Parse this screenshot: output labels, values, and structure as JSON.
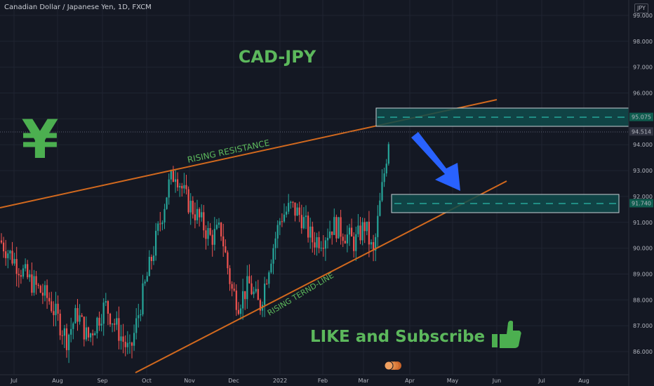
{
  "header": {
    "symbol_title": "Canadian Dollar / Japanese Yen, 1D, FXCM",
    "currency": "JPY"
  },
  "annotations": {
    "title": "CAD-JPY",
    "yen_symbol": "¥",
    "resistance_label": "RISING RESISTANCE",
    "trendline_label": "RISING TERND-LINE",
    "cta": "LIKE and Subscribe",
    "thumbs_up": "👍"
  },
  "colors": {
    "background": "#141823",
    "grid": "#1f2431",
    "up_candle": "#26a69a",
    "down_candle": "#ef5350",
    "trendline": "#d2691e",
    "zone_fill": "#0f4b4b",
    "zone_border": "#c8d1d6",
    "zone_dash": "#26a69a",
    "annotation_green": "#5cb85c",
    "arrow": "#2962ff",
    "price_label_bg": "#0f5c4e"
  },
  "chart_data": {
    "type": "candlestick",
    "title": "Canadian Dollar / Japanese Yen, 1D, FXCM",
    "y_axis": {
      "ticks": [
        "99.000",
        "98.000",
        "97.000",
        "96.000",
        "95.000",
        "94.000",
        "93.000",
        "92.000",
        "91.000",
        "90.000",
        "89.000",
        "88.000",
        "87.000",
        "86.000"
      ],
      "range": [
        85.0,
        99.6
      ]
    },
    "x_axis": {
      "ticks": [
        "Jul",
        "Aug",
        "Sep",
        "Oct",
        "Nov",
        "Dec",
        "2022",
        "Feb",
        "Mar",
        "Apr",
        "May",
        "Jun",
        "Jul",
        "Aug"
      ]
    },
    "price_labels": [
      {
        "value": "95.075",
        "price": 95.075
      },
      {
        "value": "94.514",
        "price": 94.514
      },
      {
        "value": "91.740",
        "price": 91.74
      }
    ],
    "key_prices": {
      "jul_start": 90.3,
      "aug_low": 86.5,
      "sep_low": 85.9,
      "oct_high": 93.0,
      "nov_low": 87.9,
      "dec_low": 87.7,
      "jan_high": 91.6,
      "feb_range": [
        89.8,
        91.6
      ],
      "mar_low": 89.7,
      "last": 94.514
    },
    "zones": [
      {
        "name": "resistance-zone",
        "top": 95.5,
        "bottom": 94.75,
        "level": 95.075,
        "start": "2022-03-15",
        "end": "2022-08-31"
      },
      {
        "name": "target-zone",
        "top": 92.05,
        "bottom": 91.3,
        "level": 91.74,
        "start": "2022-03-15",
        "end": "2022-08-01"
      }
    ]
  }
}
